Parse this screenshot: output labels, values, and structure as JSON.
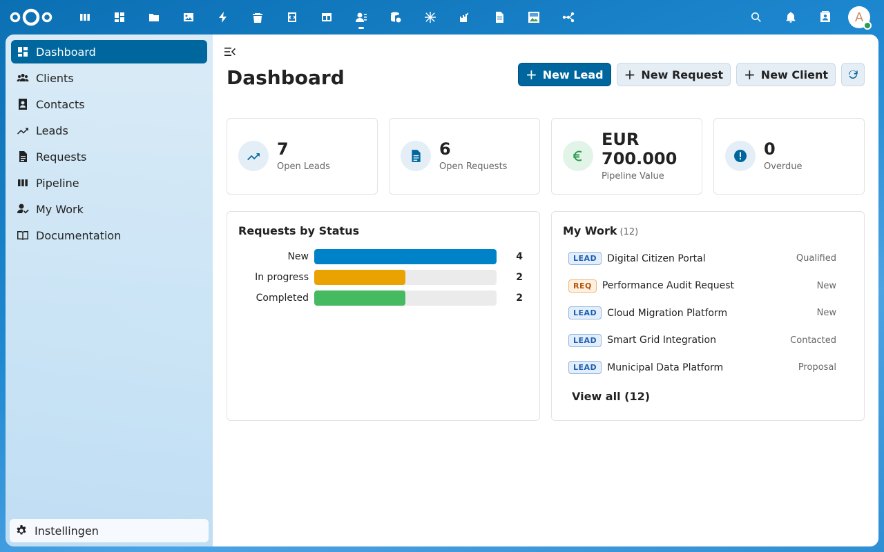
{
  "header": {
    "apps": [
      {
        "name": "deck-icon"
      },
      {
        "name": "dashboard-icon"
      },
      {
        "name": "files-icon"
      },
      {
        "name": "photos-icon"
      },
      {
        "name": "activity-icon"
      },
      {
        "name": "deleted-files-icon"
      },
      {
        "name": "code-icon"
      },
      {
        "name": "tables-icon"
      },
      {
        "name": "contacts-crm-icon",
        "active": true
      },
      {
        "name": "database-icon"
      },
      {
        "name": "snowflake-icon"
      },
      {
        "name": "castle-icon"
      },
      {
        "name": "document-icon"
      },
      {
        "name": "image-editor-icon"
      },
      {
        "name": "flow-icon"
      }
    ],
    "avatar_letter": "A"
  },
  "sidebar": {
    "items": [
      {
        "label": "Dashboard",
        "icon": "dashboard-icon",
        "active": true
      },
      {
        "label": "Clients",
        "icon": "people-icon"
      },
      {
        "label": "Contacts",
        "icon": "contact-card-icon"
      },
      {
        "label": "Leads",
        "icon": "trending-up-icon"
      },
      {
        "label": "Requests",
        "icon": "document-icon"
      },
      {
        "label": "Pipeline",
        "icon": "columns-icon"
      },
      {
        "label": "My Work",
        "icon": "person-check-icon"
      },
      {
        "label": "Documentation",
        "icon": "book-icon"
      }
    ],
    "settings_label": "Instellingen"
  },
  "main": {
    "title": "Dashboard",
    "actions": {
      "new_lead": "New Lead",
      "new_request": "New Request",
      "new_client": "New Client",
      "plus": "+"
    },
    "stats": [
      {
        "value": "7",
        "label": "Open Leads",
        "icon": "trending-up-icon"
      },
      {
        "value": "6",
        "label": "Open Requests",
        "icon": "document-icon"
      },
      {
        "value": "EUR 700.000",
        "label": "Pipeline Value",
        "icon": "euro-icon"
      },
      {
        "value": "0",
        "label": "Overdue",
        "icon": "alert-icon"
      }
    ],
    "requests_panel": {
      "title": "Requests by Status"
    },
    "my_work": {
      "title": "My Work",
      "count": "(12)",
      "items": [
        {
          "type": "LEAD",
          "name": "Digital Citizen Portal",
          "status": "Qualified"
        },
        {
          "type": "REQ",
          "name": "Performance Audit Request",
          "status": "New"
        },
        {
          "type": "LEAD",
          "name": "Cloud Migration Platform",
          "status": "New"
        },
        {
          "type": "LEAD",
          "name": "Smart Grid Integration",
          "status": "Contacted"
        },
        {
          "type": "LEAD",
          "name": "Municipal Data Platform",
          "status": "Proposal"
        }
      ],
      "view_all": "View all (12)"
    }
  },
  "colors": {
    "primary": "#00679e",
    "bar_new": "#0082c9",
    "bar_in_progress": "#e9a200",
    "bar_completed": "#46ba61",
    "euro_green": "#2d9a4f"
  },
  "chart_data": {
    "type": "bar",
    "orientation": "horizontal",
    "title": "Requests by Status",
    "categories": [
      "New",
      "In progress",
      "Completed"
    ],
    "values": [
      4,
      2,
      2
    ],
    "xlim": [
      0,
      4
    ]
  }
}
